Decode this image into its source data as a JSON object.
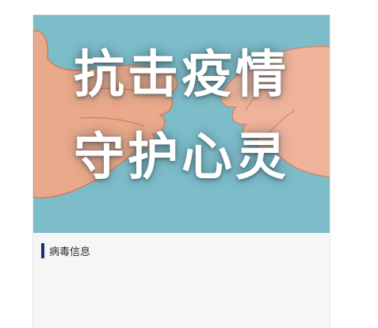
{
  "card": {
    "banner": {
      "line1": "抗击疫情",
      "line2": "守护心灵",
      "background_color": "#7dbdca"
    },
    "section": {
      "title": "病毒信息",
      "accent_color": "#1b2e7a"
    }
  }
}
